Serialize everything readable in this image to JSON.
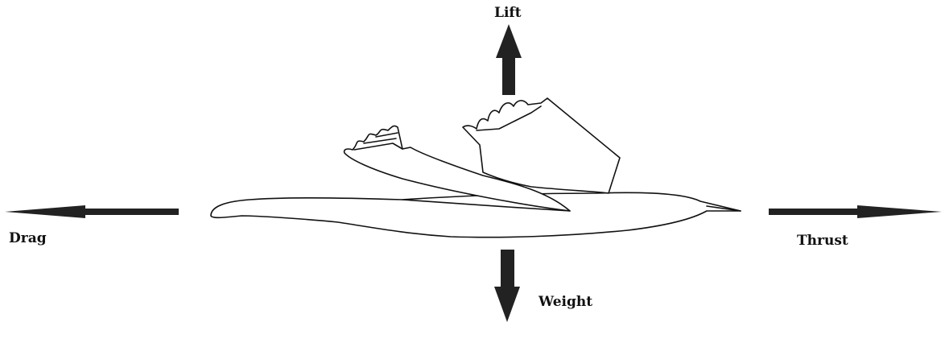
{
  "diagram": {
    "forces": {
      "lift": "Lift",
      "drag": "Drag",
      "thrust": "Thrust",
      "weight": "Weight"
    },
    "colors": {
      "arrow": "#222222",
      "outline": "#111111",
      "background": "#ffffff"
    },
    "icons": {
      "bird": "bird-in-flight-outline"
    }
  }
}
